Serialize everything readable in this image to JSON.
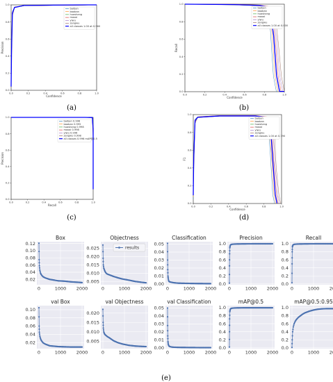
{
  "captions": [
    "(a)",
    "(b)",
    "(c)",
    "(d)",
    "(e)"
  ],
  "colors": {
    "classes": [
      "#1f77b4",
      "#ff7f0e",
      "#2ca02c",
      "#d62728",
      "#9467bd",
      "#8c564b",
      "#e377c2"
    ],
    "all": "#0000ff",
    "results": "#4c72b0",
    "seaborn_bg": "#eaeaf2"
  },
  "chart_data": [
    {
      "id": "a",
      "type": "line",
      "xlabel": "Confidence",
      "ylabel": "Precision",
      "xlim": [
        0,
        1
      ],
      "ylim": [
        0,
        1
      ],
      "xticks": [
        "0.0",
        "0.2",
        "0.4",
        "0.6",
        "0.8",
        "1.0"
      ],
      "yticks": [
        "0.0",
        "0.2",
        "0.4",
        "0.6",
        "0.8",
        "1.0"
      ],
      "legend_position": "top-right",
      "legend": [
        "baiban",
        "baoban",
        "huashang",
        "maoxi",
        "yiwu",
        "zangwu",
        "all classes 1.00 at 0.960"
      ]
    },
    {
      "id": "b",
      "type": "line",
      "xlabel": "Confidence",
      "ylabel": "Recall",
      "xlim": [
        0,
        1
      ],
      "ylim": [
        0,
        1
      ],
      "xticks": [
        "0.0",
        "0.2",
        "0.4",
        "0.6",
        "0.8",
        "1.0"
      ],
      "yticks": [
        "0.0",
        "0.2",
        "0.4",
        "0.6",
        "0.8",
        "1.0"
      ],
      "legend_position": "top-right",
      "legend": [
        "baiban",
        "baoban",
        "huashang",
        "maoxi",
        "yiwu",
        "zangwu",
        "all classes 1.00 at 0.000"
      ]
    },
    {
      "id": "c",
      "type": "line",
      "xlabel": "Recall",
      "ylabel": "Precision",
      "xlim": [
        0,
        1
      ],
      "ylim": [
        0,
        1
      ],
      "xticks": [
        "0.0",
        "0.2",
        "0.4",
        "0.6",
        "0.8",
        "1.0"
      ],
      "yticks": [
        "0.0",
        "0.2",
        "0.4",
        "0.6",
        "0.8",
        "1.0"
      ],
      "legend_position": "top-right",
      "legend": [
        "baiban 0.996",
        "baoban 0.995",
        "huashang 0.998",
        "maoxi 0.998",
        "yiwu 0.996",
        "zangwu 0.998",
        "all classes 0.996 mAP@0.5"
      ]
    },
    {
      "id": "d",
      "type": "line",
      "xlabel": "Confidence",
      "ylabel": "F1",
      "xlim": [
        0,
        1
      ],
      "ylim": [
        0,
        1
      ],
      "xticks": [
        "0.0",
        "0.2",
        "0.4",
        "0.6",
        "0.8",
        "1.0"
      ],
      "yticks": [
        "0.0",
        "0.2",
        "0.4",
        "0.6",
        "0.8",
        "1.0"
      ],
      "legend_position": "top-right",
      "legend": [
        "baiban",
        "baoban",
        "huashang",
        "maoxi",
        "yiwu",
        "zangwu",
        "all classes 1.00 at 0.790"
      ]
    },
    {
      "id": "e",
      "type": "scatter",
      "layout": "2x5 grid",
      "grid": true,
      "x_range": [
        0,
        2000
      ],
      "x_ticks": [
        "0",
        "1000",
        "2000"
      ],
      "legend": [
        "results"
      ],
      "panels": [
        {
          "title": "Box",
          "ylim": [
            0.005,
            0.125
          ],
          "yticks": [
            "0.02",
            "0.04",
            "0.06",
            "0.08",
            "0.10",
            "0.12"
          ],
          "x": [
            0,
            10,
            20,
            40,
            70,
            100,
            150,
            200,
            300,
            400,
            500,
            700,
            900,
            1200,
            1500,
            1800,
            2000
          ],
          "y": [
            0.121,
            0.075,
            0.058,
            0.046,
            0.038,
            0.034,
            0.03,
            0.027,
            0.024,
            0.022,
            0.02,
            0.018,
            0.016,
            0.015,
            0.013,
            0.012,
            0.011
          ]
        },
        {
          "title": "Objectness",
          "ylim": [
            0.003,
            0.029
          ],
          "yticks": [
            "0.005",
            "0.010",
            "0.015",
            "0.020",
            "0.025"
          ],
          "x": [
            0,
            10,
            20,
            40,
            70,
            100,
            150,
            200,
            300,
            400,
            500,
            700,
            900,
            1200,
            1500,
            1800,
            2000
          ],
          "y": [
            0.027,
            0.019,
            0.015,
            0.013,
            0.012,
            0.011,
            0.01,
            0.0095,
            0.009,
            0.0085,
            0.008,
            0.0072,
            0.0065,
            0.0058,
            0.005,
            0.0045,
            0.0042
          ]
        },
        {
          "title": "Classification",
          "ylim": [
            -0.001,
            0.053
          ],
          "yticks": [
            "0.00",
            "0.01",
            "0.02",
            "0.03",
            "0.04",
            "0.05"
          ],
          "x": [
            0,
            5,
            10,
            20,
            30,
            50,
            80,
            120,
            200,
            300,
            500,
            800,
            1200,
            1600,
            2000
          ],
          "y": [
            0.051,
            0.03,
            0.018,
            0.01,
            0.007,
            0.004,
            0.003,
            0.0025,
            0.002,
            0.0015,
            0.001,
            0.0008,
            0.0006,
            0.0005,
            0.0004
          ]
        },
        {
          "title": "Precision",
          "ylim": [
            -0.02,
            1.05
          ],
          "yticks": [
            "0.0",
            "0.2",
            "0.4",
            "0.6",
            "0.8",
            "1.0"
          ],
          "x": [
            0,
            5,
            10,
            20,
            30,
            50,
            80,
            120,
            200,
            300,
            500,
            800,
            1200,
            1600,
            2000
          ],
          "y": [
            0.02,
            0.45,
            0.75,
            0.9,
            0.94,
            0.97,
            0.98,
            0.985,
            0.99,
            0.993,
            0.995,
            0.997,
            0.998,
            0.998,
            0.999
          ]
        },
        {
          "title": "Recall",
          "ylim": [
            -0.02,
            1.05
          ],
          "yticks": [
            "0.0",
            "0.2",
            "0.4",
            "0.6",
            "0.8",
            "1.0"
          ],
          "x": [
            0,
            5,
            10,
            20,
            30,
            50,
            80,
            120,
            200,
            300,
            500,
            800,
            1200,
            1600,
            2000
          ],
          "y": [
            0.03,
            0.5,
            0.8,
            0.92,
            0.95,
            0.97,
            0.98,
            0.985,
            0.99,
            0.993,
            0.995,
            0.997,
            0.998,
            0.998,
            0.999
          ]
        },
        {
          "title": "val Box",
          "ylim": [
            0.005,
            0.11
          ],
          "yticks": [
            "0.02",
            "0.04",
            "0.06",
            "0.08",
            "0.10"
          ],
          "x": [
            0,
            10,
            20,
            40,
            70,
            100,
            150,
            200,
            300,
            400,
            500,
            700,
            900,
            1200,
            1500,
            1800,
            2000
          ],
          "y": [
            0.105,
            0.06,
            0.045,
            0.036,
            0.03,
            0.026,
            0.022,
            0.019,
            0.016,
            0.014,
            0.012,
            0.011,
            0.01,
            0.0095,
            0.009,
            0.009,
            0.009
          ]
        },
        {
          "title": "val Objectness",
          "ylim": [
            0.001,
            0.024
          ],
          "yticks": [
            "0.005",
            "0.010",
            "0.015",
            "0.020"
          ],
          "x": [
            0,
            10,
            20,
            40,
            70,
            100,
            150,
            200,
            300,
            400,
            500,
            700,
            900,
            1200,
            1500,
            1800,
            2000
          ],
          "y": [
            0.022,
            0.015,
            0.012,
            0.01,
            0.009,
            0.0085,
            0.008,
            0.0075,
            0.0068,
            0.006,
            0.0052,
            0.0042,
            0.0035,
            0.0028,
            0.0024,
            0.0022,
            0.0021
          ]
        },
        {
          "title": "val Classification",
          "ylim": [
            -0.001,
            0.053
          ],
          "yticks": [
            "0.00",
            "0.01",
            "0.02",
            "0.03",
            "0.04",
            "0.05"
          ],
          "x": [
            0,
            5,
            10,
            20,
            30,
            50,
            80,
            120,
            200,
            300,
            500,
            800,
            1200,
            1600,
            2000
          ],
          "y": [
            0.05,
            0.028,
            0.015,
            0.008,
            0.005,
            0.003,
            0.002,
            0.0015,
            0.001,
            0.0008,
            0.0006,
            0.0005,
            0.0004,
            0.0003,
            0.0003
          ]
        },
        {
          "title": "mAP@0.5",
          "ylim": [
            -0.02,
            1.05
          ],
          "yticks": [
            "0.0",
            "0.2",
            "0.4",
            "0.6",
            "0.8",
            "1.0"
          ],
          "x": [
            0,
            5,
            10,
            20,
            30,
            50,
            80,
            120,
            200,
            300,
            500,
            800,
            1200,
            1600,
            2000
          ],
          "y": [
            0.02,
            0.4,
            0.72,
            0.9,
            0.94,
            0.97,
            0.98,
            0.985,
            0.99,
            0.993,
            0.995,
            0.996,
            0.996,
            0.996,
            0.996
          ]
        },
        {
          "title": "mAP@0.5:0.95",
          "ylim": [
            -0.02,
            1.05
          ],
          "yticks": [
            "0.0",
            "0.2",
            "0.4",
            "0.6",
            "0.8",
            "1.0"
          ],
          "x": [
            0,
            10,
            30,
            60,
            100,
            150,
            200,
            300,
            400,
            500,
            600,
            800,
            1000,
            1200,
            1400,
            1600,
            1800,
            2000
          ],
          "y": [
            0.01,
            0.2,
            0.4,
            0.52,
            0.6,
            0.66,
            0.7,
            0.76,
            0.8,
            0.84,
            0.87,
            0.91,
            0.94,
            0.96,
            0.97,
            0.975,
            0.975,
            0.975
          ]
        }
      ]
    }
  ]
}
